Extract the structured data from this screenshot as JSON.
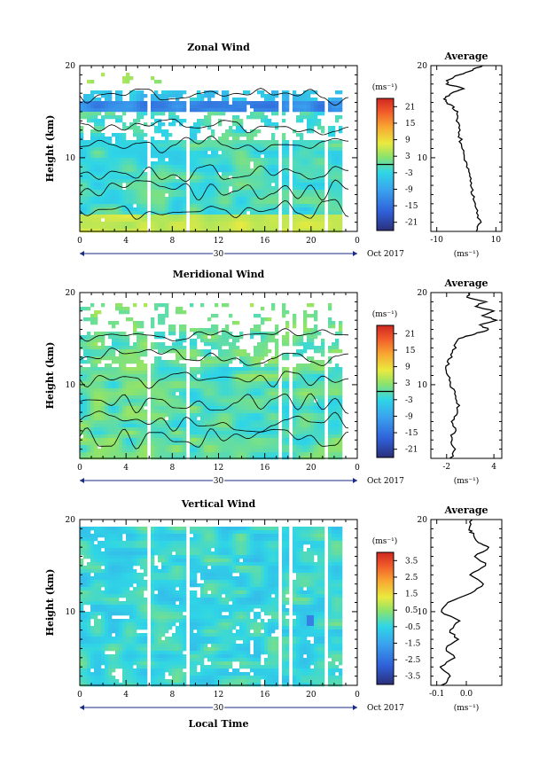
{
  "chart_data": [
    {
      "type": "heatmap",
      "title": "Zonal Wind",
      "ylabel": "Height (km)",
      "y_ticks": [
        "20",
        "10"
      ],
      "ylim": [
        2,
        20
      ],
      "x_ticks": [
        "0",
        "4",
        "8",
        "12",
        "16",
        "20",
        "0"
      ],
      "xlim": [
        0,
        24
      ],
      "date_marker": "30",
      "date_label": "Oct 2017",
      "colorbar": {
        "unit": "(ms⁻¹)",
        "tick_labels": [
          "21",
          "15",
          "9",
          "3",
          "-3",
          "-9",
          "-15",
          "-21"
        ],
        "range": [
          -24,
          24
        ],
        "zero_line": true
      },
      "profile": {
        "title": "Average",
        "x_ticks": [
          "-10",
          "10"
        ],
        "xlim": [
          -12,
          12
        ],
        "xlabel": "(ms⁻¹)",
        "y_ticks": [
          "20",
          "10"
        ],
        "points": [
          [
            4.0,
            2
          ],
          [
            4.5,
            3
          ],
          [
            4.0,
            4
          ],
          [
            3.0,
            5
          ],
          [
            2.0,
            6
          ],
          [
            1.5,
            7
          ],
          [
            1.0,
            8
          ],
          [
            0.5,
            9
          ],
          [
            -0.5,
            10
          ],
          [
            -1.5,
            11
          ],
          [
            -2.0,
            12
          ],
          [
            -2.5,
            13
          ],
          [
            -3.0,
            14
          ],
          [
            -3.5,
            15
          ],
          [
            -4.5,
            15.5
          ],
          [
            -6.5,
            16
          ],
          [
            -7.5,
            16.5
          ],
          [
            -5.0,
            17
          ],
          [
            -1.0,
            17.5
          ],
          [
            -6.5,
            18
          ],
          [
            -6.0,
            18.5
          ],
          [
            -2.5,
            19
          ],
          [
            2.0,
            19.5
          ],
          [
            5.5,
            20
          ]
        ]
      }
    },
    {
      "type": "heatmap",
      "title": "Meridional Wind",
      "ylabel": "Height (km)",
      "y_ticks": [
        "20",
        "10"
      ],
      "ylim": [
        2,
        20
      ],
      "x_ticks": [
        "0",
        "4",
        "8",
        "12",
        "16",
        "20",
        "0"
      ],
      "xlim": [
        0,
        24
      ],
      "date_marker": "30",
      "date_label": "Oct 2017",
      "colorbar": {
        "unit": "(ms⁻¹)",
        "tick_labels": [
          "21",
          "15",
          "9",
          "3",
          "-3",
          "-9",
          "-15",
          "-21"
        ],
        "range": [
          -24,
          24
        ],
        "zero_line": true
      },
      "profile": {
        "title": "Average",
        "x_ticks": [
          "-2",
          "4"
        ],
        "xlim": [
          -4,
          5
        ],
        "xlabel": "(ms⁻¹)",
        "y_ticks": [
          "20",
          "10"
        ],
        "points": [
          [
            -1.5,
            2
          ],
          [
            -1.0,
            3
          ],
          [
            -1.5,
            4
          ],
          [
            -1.0,
            5
          ],
          [
            -1.2,
            6
          ],
          [
            -0.8,
            7
          ],
          [
            -0.5,
            8
          ],
          [
            -0.8,
            9
          ],
          [
            -1.5,
            10
          ],
          [
            -1.8,
            11
          ],
          [
            -2.0,
            12
          ],
          [
            -1.5,
            13
          ],
          [
            -1.0,
            14
          ],
          [
            -0.5,
            15
          ],
          [
            1.5,
            15.5
          ],
          [
            3.5,
            16
          ],
          [
            2.0,
            16.5
          ],
          [
            4.5,
            17
          ],
          [
            2.5,
            17.5
          ],
          [
            4.0,
            18
          ],
          [
            1.5,
            18.5
          ],
          [
            3.0,
            19
          ],
          [
            0.5,
            19.5
          ],
          [
            1.0,
            20
          ]
        ]
      }
    },
    {
      "type": "heatmap",
      "title": "Vertical Wind",
      "ylabel": "Height (km)",
      "xlabel": "Local Time",
      "y_ticks": [
        "20",
        "10"
      ],
      "ylim": [
        2,
        20
      ],
      "x_ticks": [
        "0",
        "4",
        "8",
        "12",
        "16",
        "20",
        "0"
      ],
      "xlim": [
        0,
        24
      ],
      "date_marker": "30",
      "date_label": "Oct 2017",
      "colorbar": {
        "unit": "(ms⁻¹)",
        "tick_labels": [
          "3.5",
          "2.5",
          "1.5",
          "0.5",
          "-0.5",
          "-1.5",
          "-2.5",
          "-3.5"
        ],
        "range": [
          -4,
          4
        ],
        "zero_line": false
      },
      "profile": {
        "title": "Average",
        "x_ticks": [
          "-0.1",
          "0.0"
        ],
        "xlim": [
          -0.12,
          0.12
        ],
        "xlabel": "(ms⁻¹)",
        "y_ticks": [
          "20",
          "10"
        ],
        "points": [
          [
            -0.08,
            2
          ],
          [
            -0.05,
            3
          ],
          [
            -0.09,
            4
          ],
          [
            -0.04,
            5
          ],
          [
            -0.07,
            6
          ],
          [
            -0.03,
            7
          ],
          [
            -0.06,
            8
          ],
          [
            -0.02,
            9
          ],
          [
            -0.09,
            10
          ],
          [
            -0.06,
            11
          ],
          [
            0.02,
            12
          ],
          [
            0.06,
            13
          ],
          [
            0.01,
            14
          ],
          [
            0.07,
            15
          ],
          [
            0.03,
            16
          ],
          [
            0.08,
            17
          ],
          [
            0.04,
            17.5
          ],
          [
            0.02,
            18.5
          ],
          [
            0.01,
            19
          ],
          [
            0.02,
            20
          ]
        ]
      }
    }
  ]
}
